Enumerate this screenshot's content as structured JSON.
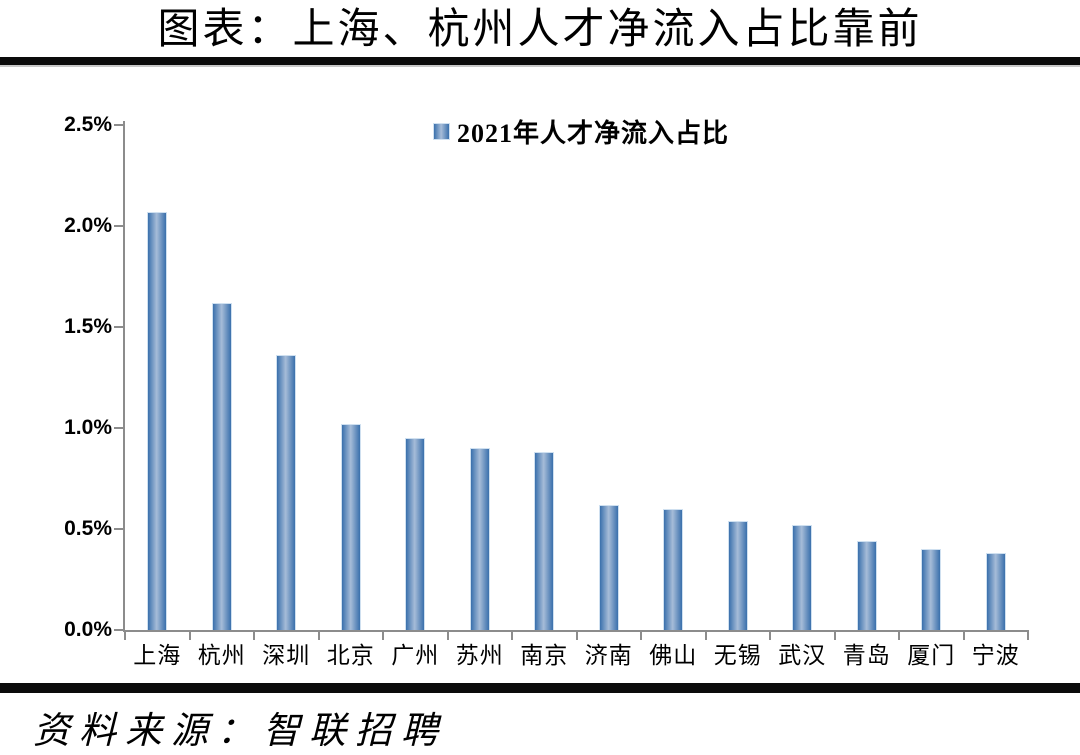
{
  "header": {
    "title": "图表：上海、杭州人才净流入占比靠前"
  },
  "footer": {
    "source": "资料来源：智联招聘"
  },
  "chart_data": {
    "type": "bar",
    "title": "图表：上海、杭州人才净流入占比靠前",
    "categories": [
      "上海",
      "杭州",
      "深圳",
      "北京",
      "广州",
      "苏州",
      "南京",
      "济南",
      "佛山",
      "无锡",
      "武汉",
      "青岛",
      "厦门",
      "宁波"
    ],
    "series": [
      {
        "name": "2021年人才净流入占比",
        "values": [
          2.07,
          1.62,
          1.36,
          1.02,
          0.95,
          0.9,
          0.88,
          0.62,
          0.6,
          0.54,
          0.52,
          0.44,
          0.4,
          0.38
        ]
      }
    ],
    "unit": "%",
    "xlabel": "",
    "ylabel": "",
    "ylim": [
      0,
      2.5
    ],
    "ytick_values": [
      0,
      0.5,
      1.0,
      1.5,
      2.0,
      2.5
    ],
    "ytick_labels": [
      "0.0%",
      "0.5%",
      "1.0%",
      "1.5%",
      "2.0%",
      "2.5%"
    ],
    "grid": false,
    "legend_position": "top-center",
    "colors": {
      "bar_edge": "#3A70AC",
      "bar_center": "#A6BCD8",
      "axis": "#8C8C8C",
      "rule": "#0B0B0B",
      "text": "#000000"
    }
  }
}
